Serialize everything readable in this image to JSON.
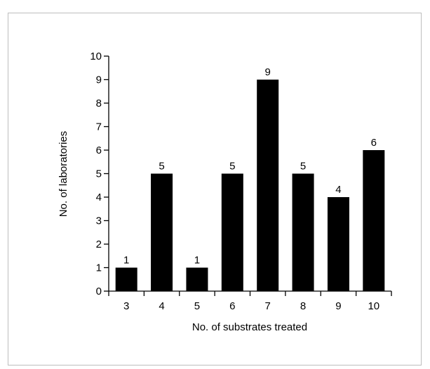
{
  "chart_data": {
    "type": "bar",
    "categories": [
      "3",
      "4",
      "5",
      "6",
      "7",
      "8",
      "9",
      "10"
    ],
    "values": [
      1,
      5,
      1,
      5,
      9,
      5,
      4,
      6
    ],
    "data_labels": [
      "1",
      "5",
      "1",
      "5",
      "9",
      "5",
      "4",
      "6"
    ],
    "xlabel": "No. of substrates treated",
    "ylabel": "No. of laboratories",
    "ylim": [
      0,
      10
    ],
    "yticks": [
      "0",
      "1",
      "2",
      "3",
      "4",
      "5",
      "6",
      "7",
      "8",
      "9",
      "10"
    ],
    "grid": false,
    "bar_color": "#000000"
  }
}
